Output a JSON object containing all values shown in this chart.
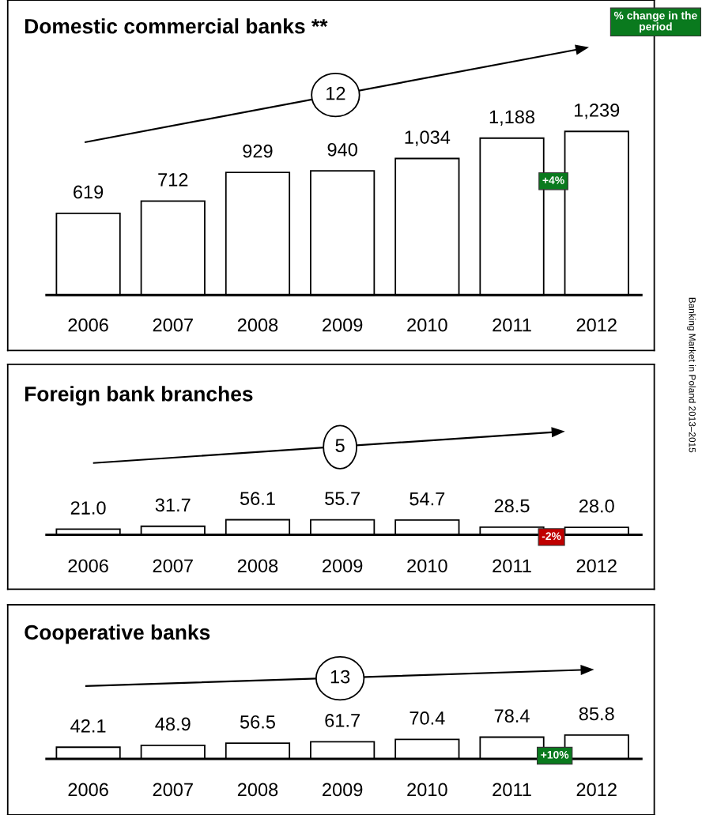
{
  "chart_data": [
    {
      "type": "bar",
      "title": "Domestic commercial banks **",
      "categories": [
        "2006",
        "2007",
        "2008",
        "2009",
        "2010",
        "2011",
        "2012"
      ],
      "values": [
        619,
        712,
        929,
        940,
        1034,
        1188,
        1239
      ],
      "color": "#ffffff",
      "value_labels": [
        "619",
        "712",
        "929",
        "940",
        "1,034",
        "1,188",
        "1,239"
      ],
      "annotations": [
        "12",
        "+4%",
        "% change in the period",
        "Banking Market in Poland 2013–2015"
      ]
    },
    {
      "type": "bar",
      "title": "Foreign bank branches",
      "categories": [
        "2006",
        "2007",
        "2008",
        "2009",
        "2010",
        "2011",
        "2012"
      ],
      "values": [
        21.0,
        31.7,
        56.1,
        55.7,
        54.7,
        28.5,
        28.0
      ],
      "color": "#ffffff",
      "value_labels": [
        "21.0",
        "31.7",
        "56.1",
        "55.7",
        "54.7",
        "28.5",
        "28.0"
      ],
      "annotations": [
        "5",
        "-2%"
      ]
    },
    {
      "type": "bar",
      "title": "Cooperative banks",
      "categories": [
        "2006",
        "2007",
        "2008",
        "2009",
        "2010",
        "2011",
        "2012"
      ],
      "values": [
        42.1,
        48.9,
        56.5,
        61.7,
        70.4,
        78.4,
        85.8
      ],
      "color": "#ffffff",
      "value_labels": [
        "42.1",
        "48.9",
        "56.5",
        "61.7",
        "70.4",
        "78.4",
        "85.8"
      ],
      "annotations": [
        "13",
        "+10%"
      ]
    }
  ]
}
